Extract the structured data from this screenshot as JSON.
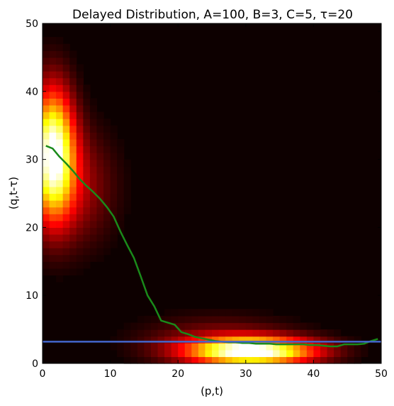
{
  "chart_data": {
    "type": "heatmap",
    "title": "Delayed Distribution, A=100, B=3, C=5, τ=20",
    "xlabel": "(p,t)",
    "ylabel": "(q,t-τ)",
    "xlim": [
      0,
      50
    ],
    "ylim": [
      0,
      50
    ],
    "xticks": [
      0,
      10,
      20,
      30,
      40,
      50
    ],
    "yticks": [
      0,
      10,
      20,
      30,
      40,
      50
    ],
    "grid": false,
    "colormap": "hot",
    "heatmap": {
      "bins": 50,
      "background_color": "#0d0000",
      "peaks": [
        {
          "x": 1.5,
          "y": 31,
          "sx": 2.2,
          "sy": 6.5,
          "weight": 1.0
        },
        {
          "x": 5,
          "y": 26,
          "sx": 4,
          "sy": 6,
          "weight": 0.22
        },
        {
          "x": 31,
          "y": 1.8,
          "sx": 6.5,
          "sy": 1.4,
          "weight": 1.0
        },
        {
          "x": 26,
          "y": 3.5,
          "sx": 8,
          "sy": 2.5,
          "weight": 0.18
        }
      ]
    },
    "series": [
      {
        "color": "#1a8a1a",
        "x": [
          0.5,
          1.5,
          2.5,
          3.5,
          4.5,
          5.5,
          6.5,
          7.5,
          8.5,
          9.5,
          10.5,
          11.5,
          12.5,
          13.5,
          14.5,
          15.5,
          16.5,
          17.5,
          18.5,
          19.5,
          20.5,
          21.5,
          22.5,
          23.5,
          24.5,
          25.5,
          26.5,
          27.5,
          28.5,
          29.5,
          30.5,
          31.5,
          32.5,
          33.5,
          34.5,
          35.5,
          36.5,
          37.5,
          38.5,
          39.5,
          40.5,
          41.5,
          42.5,
          43.5,
          44.5,
          45.5,
          46.5,
          47.5,
          48.5,
          49.5
        ],
        "y": [
          32,
          31.6,
          30.4,
          29.4,
          28.3,
          27.1,
          26.1,
          25.2,
          24.2,
          23.0,
          21.6,
          19.4,
          17.4,
          15.5,
          12.8,
          10.0,
          8.4,
          6.3,
          6.0,
          5.7,
          4.6,
          4.3,
          3.9,
          3.7,
          3.5,
          3.3,
          3.2,
          3.1,
          3.1,
          3.0,
          3.0,
          2.9,
          2.9,
          2.9,
          2.8,
          2.8,
          2.8,
          2.8,
          2.8,
          2.7,
          2.7,
          2.6,
          2.5,
          2.5,
          2.8,
          2.8,
          2.8,
          2.9,
          3.3,
          3.6
        ]
      },
      {
        "color": "#4466cc",
        "x": [
          0,
          50
        ],
        "y": [
          3.2,
          3.2
        ]
      }
    ]
  }
}
